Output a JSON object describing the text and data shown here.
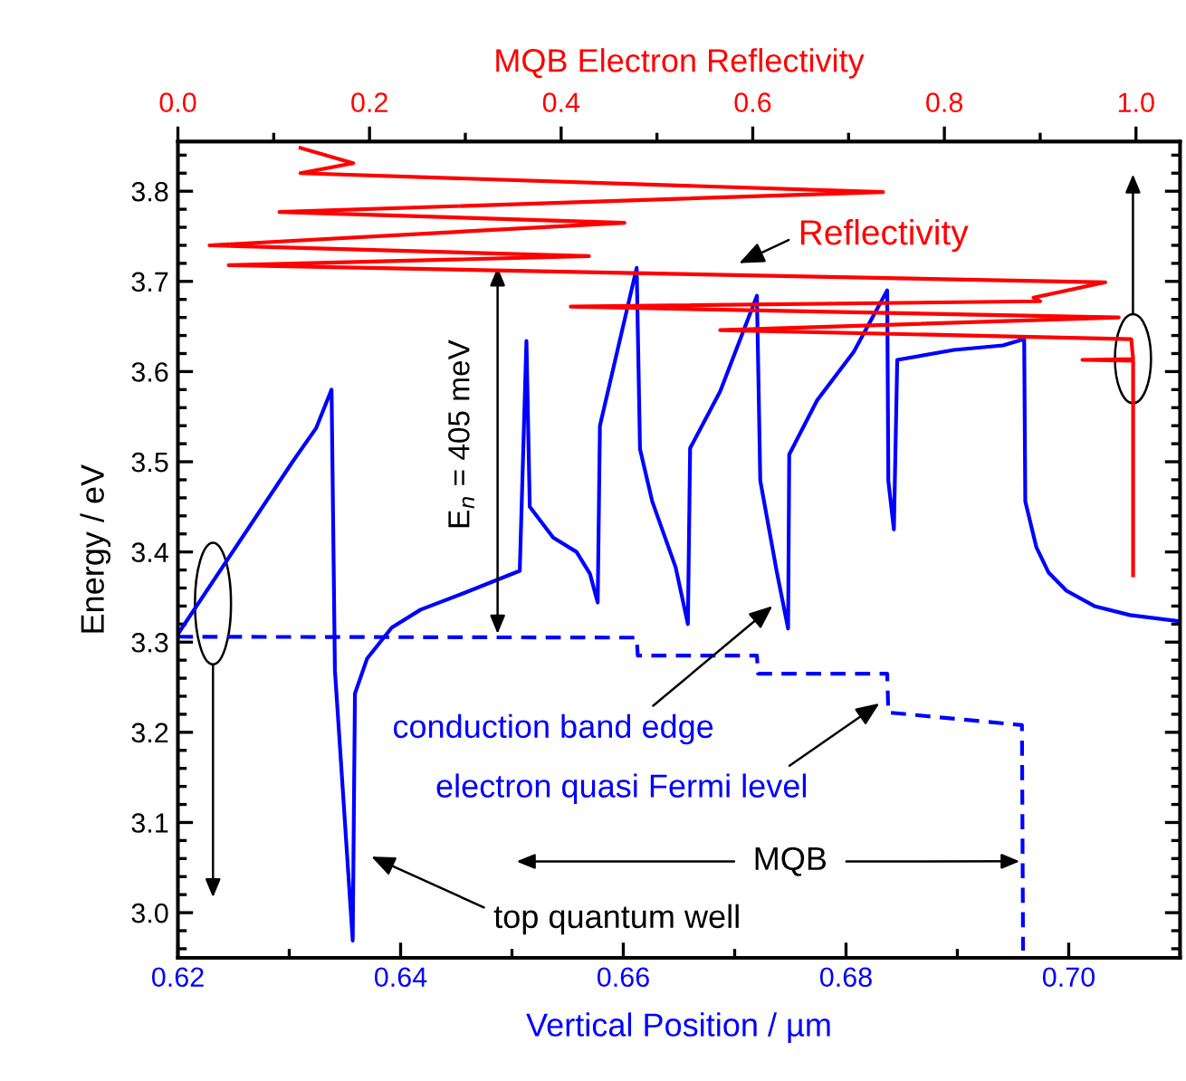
{
  "chart_data": {
    "type": "line",
    "xlabel": "Vertical Position / µm",
    "ylabel": "Energy / eV",
    "x2label": "MQB Electron Reflectivity",
    "xlim": [
      0.62,
      0.71
    ],
    "xticks": [
      0.62,
      0.64,
      0.66,
      0.68,
      {
        "value": 0.7,
        "label": "0.70"
      }
    ],
    "ylim": [
      2.95,
      3.855
    ],
    "yticks": [
      {
        "value": 3.0,
        "label": "3.0"
      },
      3.1,
      3.2,
      3.3,
      3.4,
      3.5,
      3.6,
      3.7,
      3.8
    ],
    "x2lim": [
      0,
      1.046
    ],
    "x2ticks": [
      {
        "value": 0,
        "label": "0.0"
      },
      0.2,
      0.4,
      0.6,
      0.8,
      {
        "value": 1.0,
        "label": "1.0"
      }
    ],
    "grid": false,
    "series": [
      {
        "color": "#0000ff",
        "line_style": "solid",
        "x": [
          0.62,
          0.6303,
          0.6324,
          0.6338,
          0.6341,
          0.6357,
          0.6359,
          0.637,
          0.6392,
          0.6418,
          0.6456,
          0.6507,
          0.6513,
          0.6516,
          0.6537,
          0.6558,
          0.657,
          0.6577,
          0.6579,
          0.6612,
          0.6615,
          0.6626,
          0.6647,
          0.6658,
          0.666,
          0.6687,
          0.672,
          0.6723,
          0.6738,
          0.6748,
          0.6749,
          0.6774,
          0.6807,
          0.6837,
          0.6838,
          0.6843,
          0.6846,
          0.6897,
          0.6941,
          0.696,
          0.6961,
          0.6971,
          0.6982,
          0.6998,
          0.7023,
          0.7055,
          0.71
        ],
        "values": [
          3.309,
          3.5,
          3.537,
          3.58,
          3.269,
          2.969,
          3.243,
          3.282,
          3.316,
          3.336,
          3.354,
          3.379,
          3.634,
          3.45,
          3.416,
          3.4,
          3.376,
          3.344,
          3.54,
          3.715,
          3.514,
          3.456,
          3.383,
          3.32,
          3.515,
          3.578,
          3.684,
          3.479,
          3.377,
          3.315,
          3.508,
          3.568,
          3.622,
          3.69,
          3.479,
          3.425,
          3.613,
          3.624,
          3.629,
          3.636,
          3.456,
          3.405,
          3.377,
          3.357,
          3.34,
          3.33,
          3.323
        ]
      },
      {
        "color": "#0000ff",
        "line_style": "dashed",
        "x": [
          0.62,
          0.6612,
          0.6613,
          0.672,
          0.6721,
          0.6837,
          0.6838,
          0.6958,
          0.6959
        ],
        "values": [
          3.306,
          3.305,
          3.285,
          3.285,
          3.265,
          3.265,
          3.222,
          3.208,
          2.958
        ]
      },
      {
        "color": "#ff0000",
        "line_style": "solid",
        "axis": "x2",
        "x": [
          0.128,
          0.183,
          0.128,
          0.736,
          0.106,
          0.466,
          0.033,
          0.429,
          0.053,
          0.968,
          0.893,
          0.9,
          0.41,
          0.982,
          0.566,
          0.995,
          0.997,
          0.944,
          0.997,
          0.997
        ],
        "values": [
          3.848,
          3.831,
          3.82,
          3.799,
          3.777,
          3.765,
          3.74,
          3.728,
          3.718,
          3.699,
          3.682,
          3.678,
          3.672,
          3.66,
          3.646,
          3.636,
          3.614,
          3.613,
          3.612,
          3.374
        ]
      }
    ],
    "annotations": [
      "Reflectivity",
      "E$_{n}$ = 405 meV",
      {
        "text": "conduction band edge",
        "x": 0.6734,
        "y": 3.34
      },
      {
        "text": "electron quasi Fermi level",
        "x": 0.683,
        "y": 3.232
      },
      {
        "text": "MQB",
        "x": 0.6956,
        "y": 3.057
      },
      "top quantum well"
    ]
  }
}
